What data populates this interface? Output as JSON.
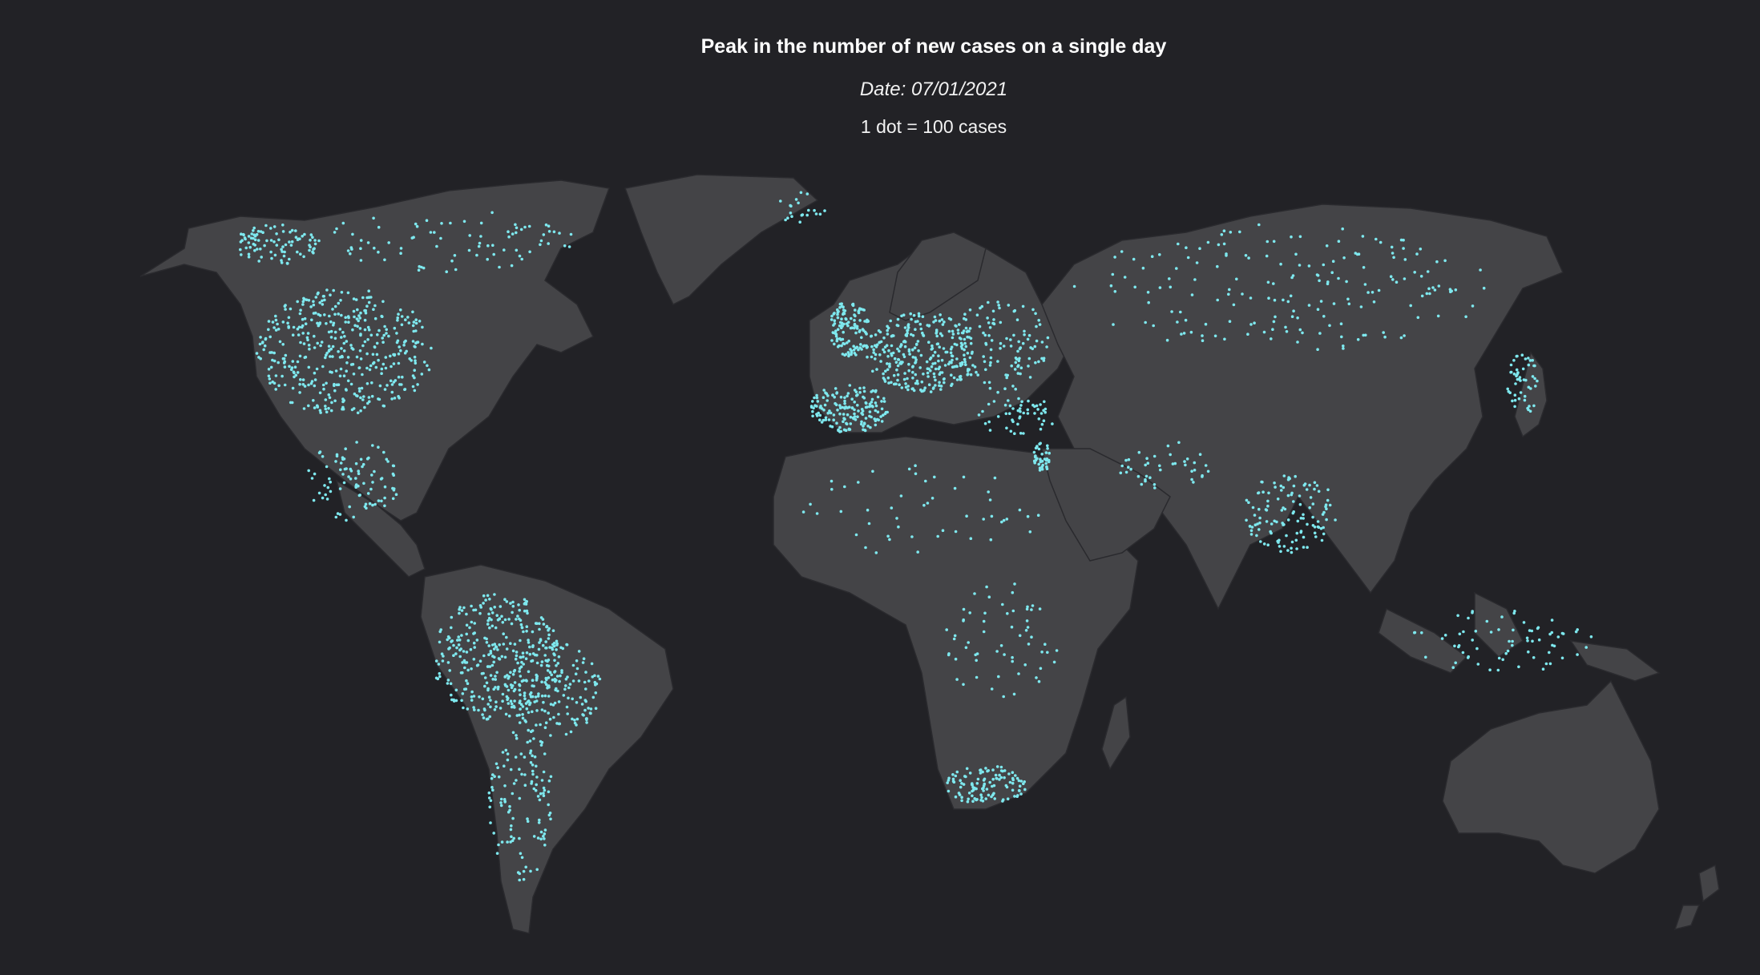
{
  "title": "Peak in the number of new cases on a single day",
  "date_label": "Date: 07/01/2021",
  "note": "1 dot = 100 cases",
  "colors": {
    "background": "#222226",
    "land": "#444447",
    "dot": "#7ee8ee"
  }
}
